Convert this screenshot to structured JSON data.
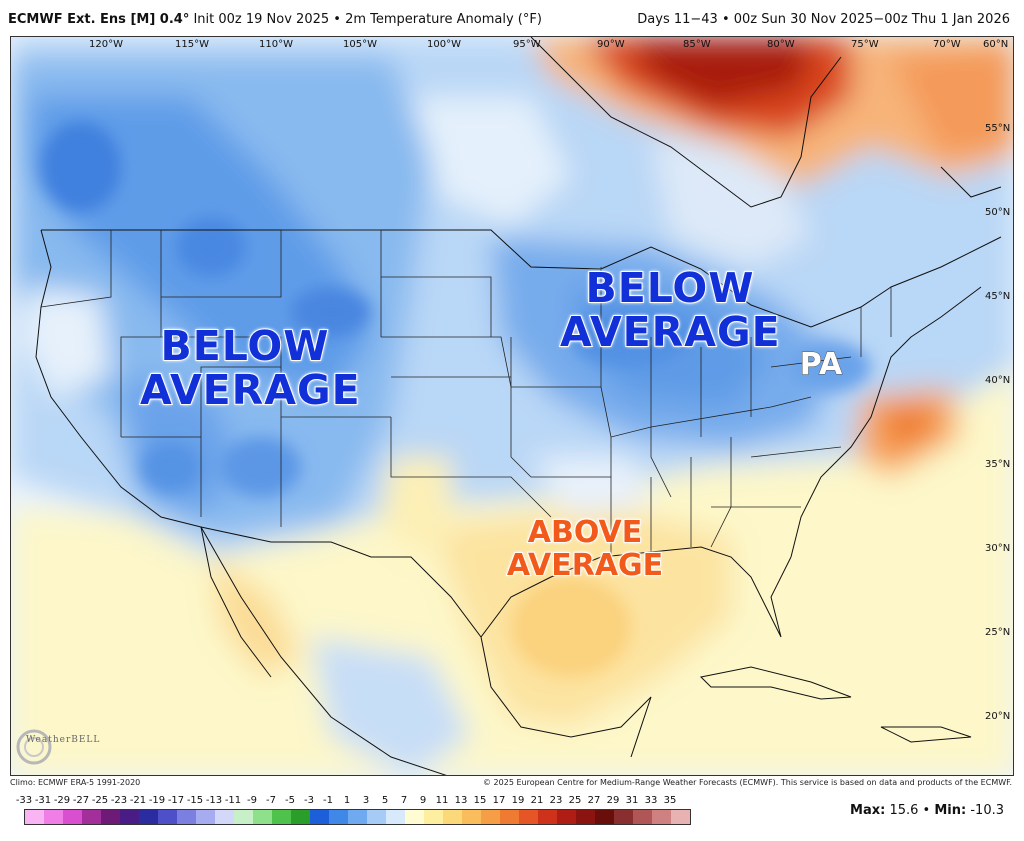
{
  "header": {
    "model": "ECMWF Ext. Ens [M] 0.4°",
    "init": " Init 00z 19 Nov 2025 • 2m Temperature Anomaly (°F)",
    "valid": "Days 11−43 • 00z Sun 30 Nov 2025−00z Thu 1 Jan 2026"
  },
  "map": {
    "labels": {
      "below_west_1": "BELOW",
      "below_west_2": "AVERAGE",
      "below_east_1": "BELOW",
      "below_east_2": "AVERAGE",
      "above_1": "ABOVE",
      "above_2": "AVERAGE",
      "state": "PA"
    },
    "longitudes": [
      "120°W",
      "115°W",
      "110°W",
      "105°W",
      "100°W",
      "95°W",
      "90°W",
      "85°W",
      "80°W",
      "75°W",
      "70°W",
      "60°N"
    ],
    "latitudes": [
      "55°N",
      "50°N",
      "45°N",
      "40°N",
      "35°N",
      "30°N",
      "25°N",
      "20°N"
    ],
    "logo": "WeatherBELL"
  },
  "footer": {
    "climo": "Climo: ECMWF ERA-5 1991-2020",
    "credit": "© 2025 European Centre for Medium-Range Weather Forecasts (ECMWF). This service is based on data and products of the ECMWF."
  },
  "scale": {
    "ticks": [
      "-33",
      "-31",
      "-29",
      "-27",
      "-25",
      "-23",
      "-21",
      "-19",
      "-17",
      "-15",
      "-13",
      "-11",
      "-9",
      "-7",
      "-5",
      "-3",
      "-1",
      "1",
      "3",
      "5",
      "7",
      "9",
      "11",
      "13",
      "15",
      "17",
      "19",
      "21",
      "23",
      "25",
      "27",
      "29",
      "31",
      "33",
      "35"
    ],
    "colors": [
      "#f9b4f4",
      "#ef7fe6",
      "#d94fcf",
      "#a32f9a",
      "#6d1b77",
      "#4a1d86",
      "#2b2c9f",
      "#4d50c8",
      "#7b7fe0",
      "#a7acf0",
      "#d4d8f8",
      "#c8f0c8",
      "#8ee08a",
      "#4ec24a",
      "#2a9d2a",
      "#1d5fd9",
      "#3f88e8",
      "#6faaf0",
      "#a6cbf6",
      "#d8e9fb",
      "#fffbd2",
      "#fdeea0",
      "#fbd87a",
      "#f9bd5c",
      "#f59e45",
      "#ef7b33",
      "#e55526",
      "#cf321b",
      "#b01d14",
      "#8b1410",
      "#6a0e0c",
      "#8a2f2f",
      "#b05656",
      "#cf8181",
      "#e8b2b2"
    ],
    "max_label": "Max:",
    "max": "15.6",
    "min_label": "Min:",
    "min": "-10.3",
    "sep": " • "
  }
}
